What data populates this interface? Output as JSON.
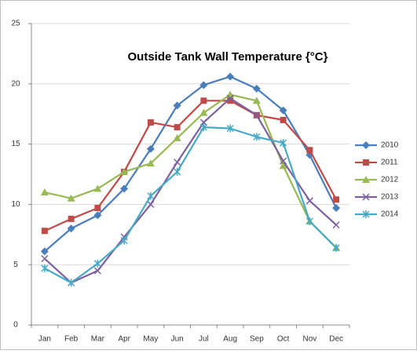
{
  "chart_data": {
    "type": "line",
    "title": "Outside Tank Wall Temperature {°C}",
    "categories": [
      "Jan",
      "Feb",
      "Mar",
      "Apr",
      "May",
      "Jun",
      "Jul",
      "Aug",
      "Sep",
      "Oct",
      "Nov",
      "Dec"
    ],
    "series": [
      {
        "name": "2010",
        "color": "#4a7ebb",
        "marker": "diamond",
        "values": [
          6.1,
          8.0,
          9.1,
          11.3,
          14.6,
          18.2,
          19.9,
          20.6,
          19.6,
          17.8,
          14.1,
          9.7
        ]
      },
      {
        "name": "2011",
        "color": "#be4b48",
        "marker": "square",
        "values": [
          7.8,
          8.8,
          9.7,
          12.7,
          16.8,
          16.4,
          18.6,
          18.6,
          17.4,
          17.0,
          14.5,
          10.4
        ]
      },
      {
        "name": "2012",
        "color": "#98b954",
        "marker": "triangle",
        "values": [
          11.0,
          10.5,
          11.3,
          12.7,
          13.4,
          15.5,
          17.6,
          19.1,
          18.6,
          13.2,
          8.6,
          6.4
        ]
      },
      {
        "name": "2013",
        "color": "#7d60a0",
        "marker": "x",
        "values": [
          5.5,
          3.5,
          4.5,
          7.3,
          10.0,
          13.5,
          16.8,
          18.8,
          17.4,
          13.6,
          10.3,
          8.3
        ]
      },
      {
        "name": "2014",
        "color": "#46aac5",
        "marker": "star",
        "values": [
          4.7,
          3.5,
          5.1,
          7.0,
          10.7,
          12.7,
          16.4,
          16.3,
          15.6,
          15.1,
          8.6,
          6.4
        ]
      }
    ],
    "ylim": [
      0,
      25
    ],
    "yticks": [
      0,
      5,
      10,
      15,
      20,
      25
    ],
    "grid": true,
    "legend": "right"
  }
}
